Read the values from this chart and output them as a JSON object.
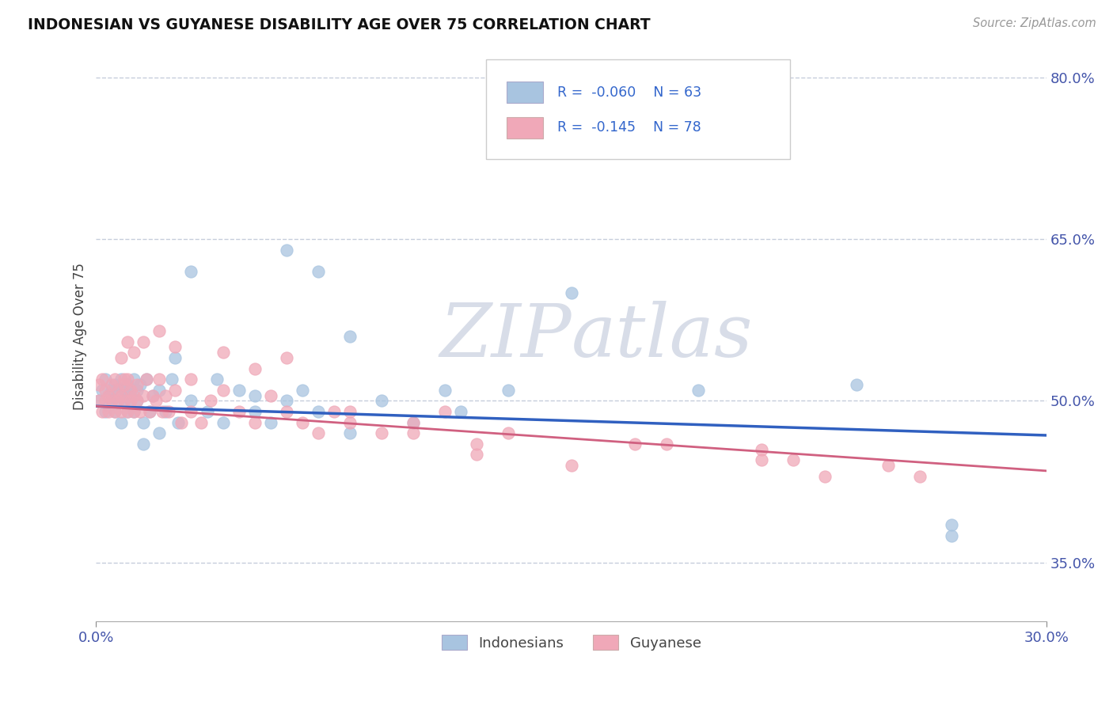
{
  "title": "INDONESIAN VS GUYANESE DISABILITY AGE OVER 75 CORRELATION CHART",
  "source_text": "Source: ZipAtlas.com",
  "ylabel": "Disability Age Over 75",
  "xlim": [
    0.0,
    0.3
  ],
  "ylim": [
    0.295,
    0.825
  ],
  "ytick_positions": [
    0.35,
    0.5,
    0.65,
    0.8
  ],
  "ytick_labels": [
    "35.0%",
    "50.0%",
    "65.0%",
    "80.0%"
  ],
  "R_indonesian": -0.06,
  "N_indonesian": 63,
  "R_guyanese": -0.145,
  "N_guyanese": 78,
  "color_indonesian": "#a8c4e0",
  "color_guyanese": "#f0a8b8",
  "line_color_indonesian": "#3060c0",
  "line_color_guyanese": "#d06080",
  "legend_label_indonesian": "Indonesians",
  "legend_label_guyanese": "Guyanese",
  "background_color": "#ffffff",
  "watermark_color": "#d8dde8",
  "indo_x": [
    0.001,
    0.002,
    0.003,
    0.003,
    0.004,
    0.004,
    0.005,
    0.005,
    0.006,
    0.006,
    0.007,
    0.007,
    0.008,
    0.008,
    0.009,
    0.009,
    0.01,
    0.01,
    0.01,
    0.011,
    0.011,
    0.012,
    0.012,
    0.013,
    0.013,
    0.014,
    0.015,
    0.016,
    0.017,
    0.018,
    0.02,
    0.022,
    0.024,
    0.026,
    0.03,
    0.035,
    0.038,
    0.04,
    0.045,
    0.05,
    0.055,
    0.06,
    0.065,
    0.07,
    0.08,
    0.09,
    0.1,
    0.115,
    0.13,
    0.15,
    0.08,
    0.05,
    0.03,
    0.025,
    0.02,
    0.015,
    0.07,
    0.06,
    0.11,
    0.19,
    0.24,
    0.27,
    0.27
  ],
  "indo_y": [
    0.5,
    0.51,
    0.49,
    0.52,
    0.505,
    0.495,
    0.5,
    0.51,
    0.49,
    0.515,
    0.5,
    0.51,
    0.48,
    0.52,
    0.5,
    0.51,
    0.49,
    0.505,
    0.515,
    0.5,
    0.51,
    0.49,
    0.52,
    0.5,
    0.51,
    0.515,
    0.48,
    0.52,
    0.49,
    0.505,
    0.51,
    0.49,
    0.52,
    0.48,
    0.5,
    0.49,
    0.52,
    0.48,
    0.51,
    0.49,
    0.48,
    0.5,
    0.51,
    0.49,
    0.47,
    0.5,
    0.48,
    0.49,
    0.51,
    0.6,
    0.56,
    0.505,
    0.62,
    0.54,
    0.47,
    0.46,
    0.62,
    0.64,
    0.51,
    0.51,
    0.515,
    0.385,
    0.375
  ],
  "guy_x": [
    0.001,
    0.001,
    0.002,
    0.002,
    0.003,
    0.003,
    0.004,
    0.004,
    0.005,
    0.005,
    0.006,
    0.006,
    0.007,
    0.007,
    0.008,
    0.008,
    0.009,
    0.009,
    0.01,
    0.01,
    0.011,
    0.011,
    0.012,
    0.012,
    0.013,
    0.013,
    0.014,
    0.015,
    0.016,
    0.017,
    0.018,
    0.019,
    0.02,
    0.021,
    0.022,
    0.023,
    0.025,
    0.027,
    0.03,
    0.033,
    0.036,
    0.04,
    0.045,
    0.05,
    0.055,
    0.06,
    0.065,
    0.07,
    0.075,
    0.08,
    0.09,
    0.1,
    0.11,
    0.12,
    0.13,
    0.008,
    0.009,
    0.01,
    0.012,
    0.015,
    0.02,
    0.025,
    0.03,
    0.04,
    0.05,
    0.06,
    0.08,
    0.1,
    0.12,
    0.15,
    0.18,
    0.21,
    0.23,
    0.25,
    0.21,
    0.17,
    0.26,
    0.22
  ],
  "guy_y": [
    0.5,
    0.515,
    0.49,
    0.52,
    0.5,
    0.51,
    0.49,
    0.505,
    0.5,
    0.515,
    0.49,
    0.52,
    0.5,
    0.51,
    0.49,
    0.505,
    0.5,
    0.515,
    0.49,
    0.52,
    0.5,
    0.51,
    0.49,
    0.505,
    0.5,
    0.515,
    0.49,
    0.505,
    0.52,
    0.49,
    0.505,
    0.5,
    0.52,
    0.49,
    0.505,
    0.49,
    0.51,
    0.48,
    0.49,
    0.48,
    0.5,
    0.51,
    0.49,
    0.48,
    0.505,
    0.49,
    0.48,
    0.47,
    0.49,
    0.48,
    0.47,
    0.48,
    0.49,
    0.46,
    0.47,
    0.54,
    0.52,
    0.555,
    0.545,
    0.555,
    0.565,
    0.55,
    0.52,
    0.545,
    0.53,
    0.54,
    0.49,
    0.47,
    0.45,
    0.44,
    0.46,
    0.445,
    0.43,
    0.44,
    0.455,
    0.46,
    0.43,
    0.445
  ],
  "indo_trend_x": [
    0.0,
    0.3
  ],
  "indo_trend_y": [
    0.495,
    0.468
  ],
  "guy_trend_x": [
    0.0,
    0.3
  ],
  "guy_trend_y": [
    0.495,
    0.435
  ]
}
